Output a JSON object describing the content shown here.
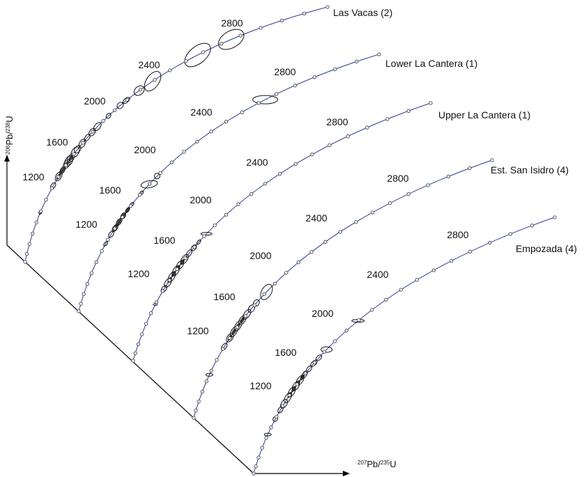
{
  "chart_data": {
    "type": "scatter",
    "title": "",
    "xlabel": {
      "mass_a": "207",
      "elem_a": "Pb/",
      "mass_b": "235",
      "elem_b": "U"
    },
    "ylabel": {
      "mass_a": "206",
      "elem_a": "Pb/",
      "mass_b": "238",
      "elem_b": "U"
    },
    "concordia_colors": {
      "curve": "#2b3a9e",
      "marker": "#444444",
      "ellipse": "#111111"
    },
    "series": [
      {
        "name": "Las Vacas (2)",
        "age_labels": [
          "1200",
          "1600",
          "2000",
          "2400",
          "2800"
        ]
      },
      {
        "name": "Lower La Cantera (1)",
        "age_labels": [
          "1200",
          "1600",
          "2000",
          "2400",
          "2800"
        ]
      },
      {
        "name": "Upper La Cantera (1)",
        "age_labels": [
          "1200",
          "1600",
          "2000",
          "2400",
          "2800"
        ]
      },
      {
        "name": "Est. San Isidro (4)",
        "age_labels": [
          "1200",
          "1600",
          "2000",
          "2400",
          "2800"
        ]
      },
      {
        "name": "Empozada (4)",
        "age_labels": [
          "1200",
          "1600",
          "2000",
          "2400",
          "2800"
        ]
      }
    ]
  }
}
